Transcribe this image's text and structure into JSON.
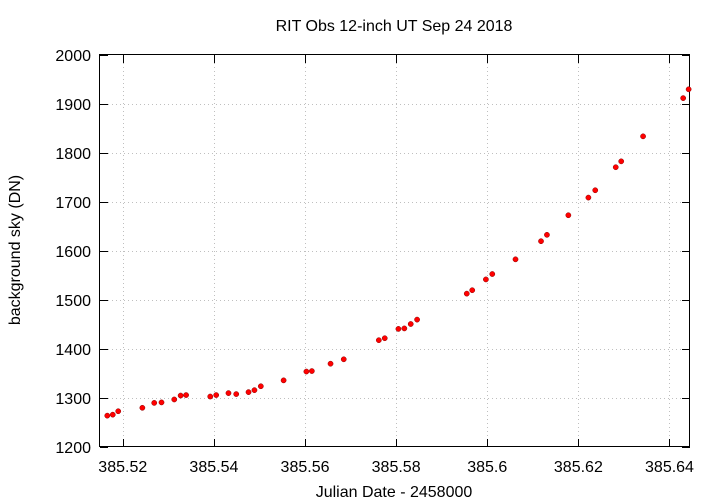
{
  "chart_data": {
    "type": "scatter",
    "title": "RIT Obs 12-inch UT Sep 24 2018",
    "xlabel": "Julian Date - 2458000",
    "ylabel": "background sky (DN)",
    "xlim": [
      385.515,
      385.6445
    ],
    "ylim": [
      1200,
      2000
    ],
    "x_ticks": [
      385.52,
      385.54,
      385.56,
      385.58,
      385.6,
      385.62,
      385.64
    ],
    "x_tick_labels": [
      "385.52",
      "385.54",
      "385.56",
      "385.58",
      "385.6",
      "385.62",
      "385.64"
    ],
    "y_ticks": [
      1200,
      1300,
      1400,
      1500,
      1600,
      1700,
      1800,
      1900,
      2000
    ],
    "y_tick_labels": [
      "1200",
      "1300",
      "1400",
      "1500",
      "1600",
      "1700",
      "1800",
      "1900",
      "2000"
    ],
    "grid": true,
    "point_color": "#ff0000",
    "series": [
      {
        "x": [
          385.5166,
          385.5178,
          385.519,
          385.5243,
          385.5269,
          385.5285,
          385.5313,
          385.5327,
          385.5339,
          385.5392,
          385.5405,
          385.5432,
          385.5449,
          385.5476,
          385.5489,
          385.5503,
          385.5553,
          385.5603,
          385.5615,
          385.5656,
          385.5685,
          385.5762,
          385.5775,
          385.5805,
          385.5818,
          385.5832,
          385.5846,
          385.5955,
          385.5967,
          385.5997,
          385.6011,
          385.6062,
          385.6118,
          385.6131,
          385.6178,
          385.6222,
          385.6237,
          385.6282,
          385.6294,
          385.6342,
          385.643,
          385.6442
        ],
        "y": [
          1264,
          1266,
          1273,
          1280,
          1290,
          1291,
          1297,
          1305,
          1306,
          1303,
          1306,
          1310,
          1308,
          1312,
          1316,
          1324,
          1336,
          1354,
          1355,
          1370,
          1379,
          1418,
          1422,
          1441,
          1442,
          1451,
          1460,
          1513,
          1520,
          1542,
          1553,
          1583,
          1620,
          1633,
          1673,
          1709,
          1724,
          1771,
          1783,
          1834,
          1912,
          1930
        ]
      }
    ]
  }
}
